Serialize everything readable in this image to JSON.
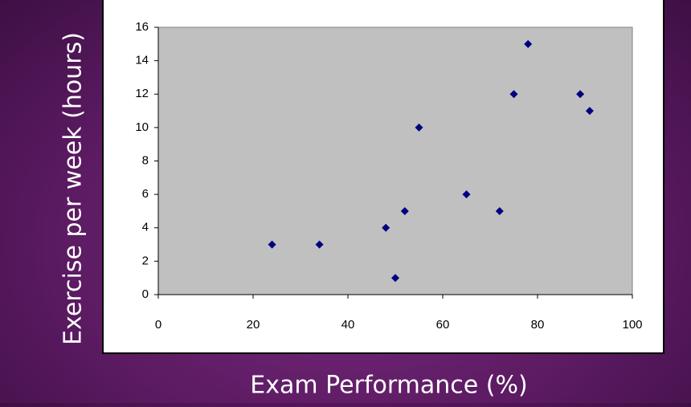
{
  "chart_data": {
    "type": "scatter",
    "x_label": "Exam Performance (%)",
    "y_label": "Exercise per week (hours)",
    "x": [
      24,
      34,
      48,
      50,
      52,
      55,
      65,
      72,
      75,
      78,
      89,
      91
    ],
    "values": [
      3,
      3,
      4,
      1,
      5,
      10,
      6,
      5,
      12,
      15,
      12,
      11
    ],
    "color": "#000080",
    "xlim": [
      0,
      100
    ],
    "xticks": [
      0,
      20,
      40,
      60,
      80,
      100
    ],
    "ylim": [
      0,
      16
    ],
    "yticks": [
      0,
      2,
      4,
      6,
      8,
      10,
      12,
      14,
      16
    ],
    "grid": false
  }
}
